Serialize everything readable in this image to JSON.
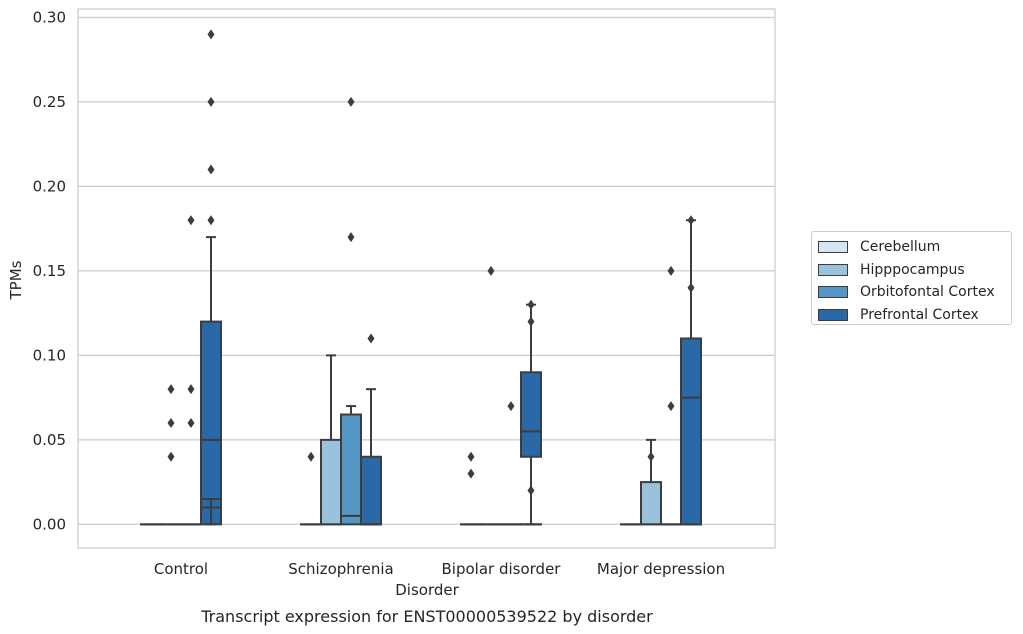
{
  "chart_data": {
    "type": "box",
    "subtitle": "Transcript expression for ENST00000539522 by disorder",
    "xlabel": "Disorder",
    "ylabel": "TPMs",
    "ylim": [
      -0.014,
      0.305
    ],
    "yticks": [
      "0.00",
      "0.05",
      "0.10",
      "0.15",
      "0.20",
      "0.25",
      "0.30"
    ],
    "grid": "horizontal",
    "legend_position": "right",
    "categories": [
      "Control",
      "Schizophrenia",
      "Bipolar disorder",
      "Major depression"
    ],
    "series": [
      {
        "name": "Cerebellum",
        "color": "#d5e5f2",
        "boxes": [
          {
            "whisker_low": 0,
            "q1": 0,
            "median": 0,
            "q3": 0,
            "whisker_high": 0,
            "outliers": []
          },
          {
            "whisker_low": 0,
            "q1": 0,
            "median": 0,
            "q3": 0,
            "whisker_high": 0,
            "outliers": [
              0.04
            ]
          },
          {
            "whisker_low": 0,
            "q1": 0,
            "median": 0,
            "q3": 0,
            "whisker_high": 0,
            "outliers": [
              0.03,
              0.04
            ]
          },
          {
            "whisker_low": 0,
            "q1": 0,
            "median": 0,
            "q3": 0,
            "whisker_high": 0,
            "outliers": []
          }
        ]
      },
      {
        "name": "Hipppocampus",
        "color": "#99c3dd",
        "boxes": [
          {
            "whisker_low": 0,
            "q1": 0,
            "median": 0,
            "q3": 0,
            "whisker_high": 0,
            "outliers": [
              0.04,
              0.06,
              0.08
            ]
          },
          {
            "whisker_low": 0,
            "q1": 0,
            "median": 0,
            "q3": 0.05,
            "whisker_high": 0.1,
            "outliers": []
          },
          {
            "whisker_low": 0,
            "q1": 0,
            "median": 0,
            "q3": 0,
            "whisker_high": 0,
            "outliers": [
              0.15
            ]
          },
          {
            "whisker_low": 0,
            "q1": 0,
            "median": 0,
            "q3": 0.025,
            "whisker_high": 0.05,
            "outliers": [
              0.04
            ]
          }
        ]
      },
      {
        "name": "Orbitofontal Cortex",
        "color": "#5497c5",
        "boxes": [
          {
            "whisker_low": 0,
            "q1": 0,
            "median": 0,
            "q3": 0,
            "whisker_high": 0,
            "outliers": [
              0.06,
              0.08,
              0.18
            ]
          },
          {
            "whisker_low": 0,
            "q1": 0,
            "median": 0.005,
            "q3": 0.065,
            "whisker_high": 0.07,
            "outliers": [
              0.17,
              0.25
            ]
          },
          {
            "whisker_low": 0,
            "q1": 0,
            "median": 0,
            "q3": 0,
            "whisker_high": 0,
            "outliers": [
              0.07
            ]
          },
          {
            "whisker_low": 0,
            "q1": 0,
            "median": 0,
            "q3": 0,
            "whisker_high": 0,
            "outliers": [
              0.07,
              0.15
            ]
          }
        ]
      },
      {
        "name": "Prefrontal Cortex",
        "color": "#2a68a7",
        "boxes": [
          {
            "whisker_low": 0,
            "q1": 0,
            "median": 0.01,
            "q3": 0.06,
            "whisker_high": 0.07,
            "outliers": [
              0.18,
              0.21,
              0.25
            ]
          },
          {
            "whisker_low": 0,
            "q1": 0,
            "median": 0,
            "q3": 0.04,
            "whisker_high": 0.08,
            "outliers": [
              0.11
            ]
          },
          {
            "whisker_low": 0,
            "q1": 0,
            "median": 0,
            "q3": 0,
            "whisker_high": 0,
            "outliers": [
              0.02,
              0.12,
              0.13
            ]
          },
          {
            "whisker_low": 0,
            "q1": 0,
            "median": 0,
            "q3": 0.055,
            "whisker_high": 0.11,
            "outliers": [
              0.14,
              0.18
            ]
          }
        ]
      },
      {
        "name": "",
        "color": "#2a68a7",
        "legend": false,
        "boxes": [
          {
            "whisker_low": 0,
            "q1": 0.015,
            "median": 0.05,
            "q3": 0.12,
            "whisker_high": 0.17,
            "outliers": [
              0.29
            ]
          },
          {
            "whisker_low": 0,
            "q1": 0,
            "median": 0,
            "q3": 0,
            "whisker_high": 0,
            "outliers": []
          },
          {
            "whisker_low": 0,
            "q1": 0.04,
            "median": 0.055,
            "q3": 0.09,
            "whisker_high": 0.13,
            "outliers": []
          },
          {
            "whisker_low": 0,
            "q1": 0,
            "median": 0.075,
            "q3": 0.11,
            "whisker_high": 0.18,
            "outliers": []
          }
        ]
      }
    ]
  }
}
